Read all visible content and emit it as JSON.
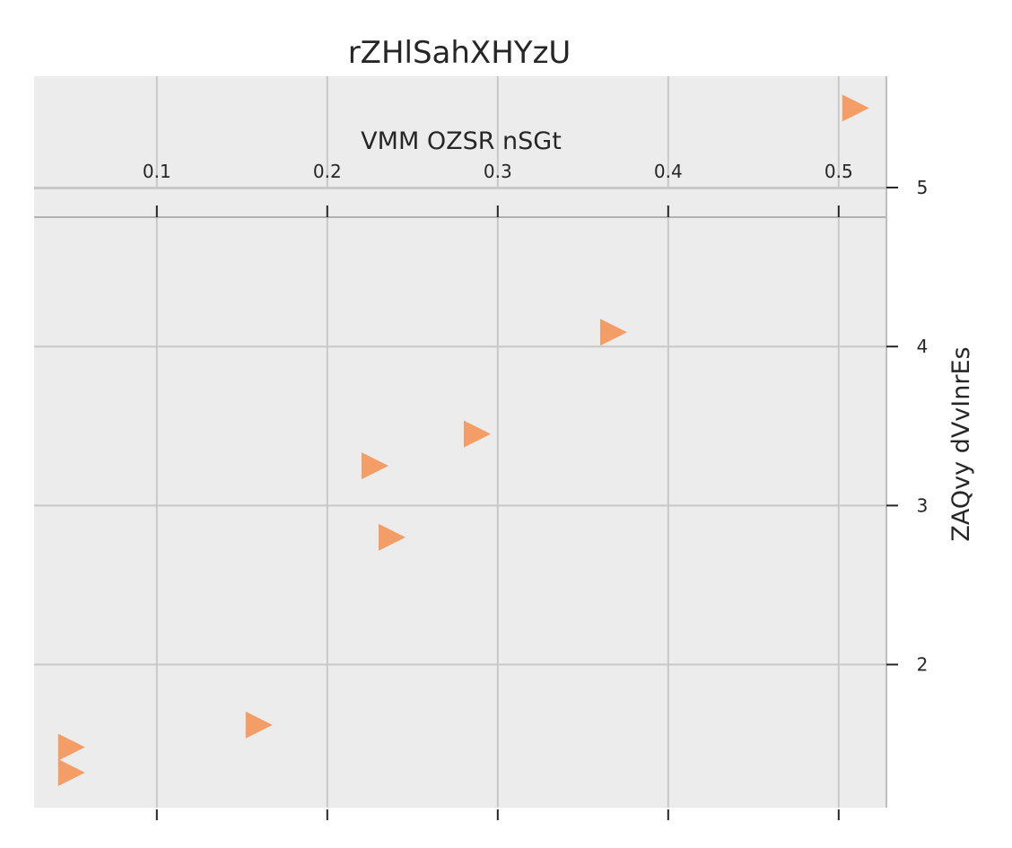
{
  "chart_data": {
    "type": "scatter",
    "title": "rZHlSahXHYzU",
    "xlabel": "VMM OZSR nSGt",
    "ylabel": "ZAQvy dVvInrEs",
    "xlim": [
      0.028,
      0.528
    ],
    "ylim": [
      1.1,
      5.7
    ],
    "xticks": [
      0.1,
      0.2,
      0.3,
      0.4,
      0.5
    ],
    "xtick_labels": [
      "0.1",
      "0.2",
      "0.3",
      "0.4",
      "0.5"
    ],
    "yticks": [
      2,
      3,
      4,
      5
    ],
    "ytick_labels": [
      "2",
      "3",
      "4",
      "5"
    ],
    "x_axis_position": "top",
    "y_axis_position": "right",
    "grid": true,
    "marker": "triangle-right",
    "colors": {
      "marker": "#f59d66",
      "plot_background": "#ececec",
      "grid": "#c8c8c8"
    },
    "points": [
      {
        "x": 0.51,
        "y": 5.5
      },
      {
        "x": 0.368,
        "y": 4.09
      },
      {
        "x": 0.288,
        "y": 3.45
      },
      {
        "x": 0.228,
        "y": 3.25
      },
      {
        "x": 0.238,
        "y": 2.8
      },
      {
        "x": 0.16,
        "y": 1.62
      },
      {
        "x": 0.05,
        "y": 1.48
      },
      {
        "x": 0.05,
        "y": 1.32
      }
    ]
  }
}
